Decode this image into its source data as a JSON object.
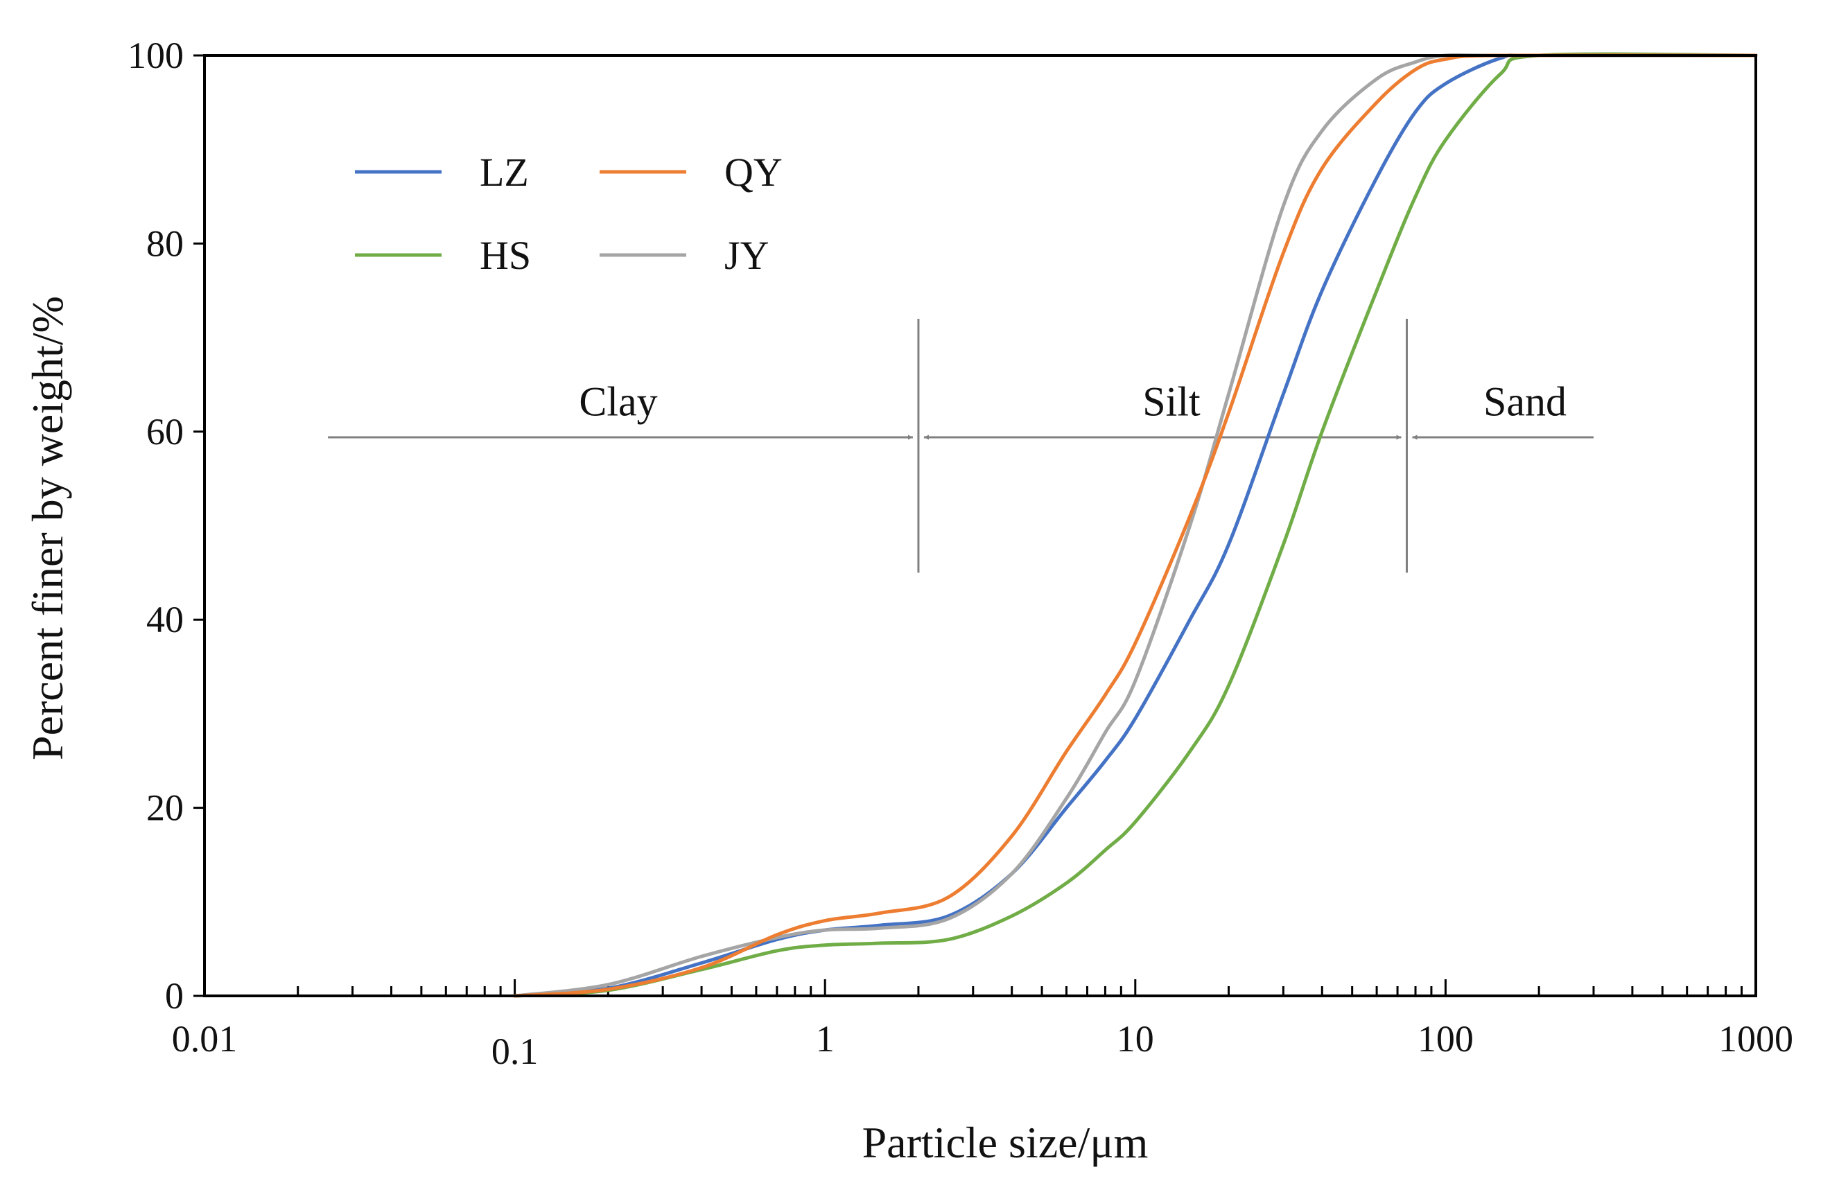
{
  "chart_data": {
    "type": "line",
    "title": "",
    "xlabel": "Particle size/μm",
    "ylabel": "Percent finer by weight/%",
    "xscale": "log",
    "xlim": [
      0.01,
      1000
    ],
    "ylim": [
      0,
      100
    ],
    "x_tick_labels": [
      "0.01",
      "0.1",
      "1",
      "10",
      "100",
      "1000"
    ],
    "y_tick_labels": [
      "0",
      "20",
      "40",
      "60",
      "80",
      "100"
    ],
    "x_ticks": [
      0.01,
      0.1,
      1,
      10,
      100,
      1000
    ],
    "y_ticks": [
      0,
      20,
      40,
      60,
      80,
      100
    ],
    "legend": [
      {
        "name": "LZ",
        "color": "#4472c4"
      },
      {
        "name": "QY",
        "color": "#ed7d31"
      },
      {
        "name": "HS",
        "color": "#70ad47"
      },
      {
        "name": "JY",
        "color": "#a5a5a5"
      }
    ],
    "legend_position": "top-left",
    "series": [
      {
        "name": "LZ",
        "color": "#4472c4",
        "x": [
          0.1,
          0.2,
          0.4,
          0.7,
          1,
          1.5,
          2.5,
          4,
          6,
          8,
          10,
          15,
          20,
          30,
          40,
          60,
          80,
          100,
          150,
          200
        ],
        "y": [
          0,
          0.8,
          3.5,
          6,
          7,
          7.5,
          8.5,
          13,
          20,
          25,
          29.5,
          40,
          48,
          64,
          75,
          87,
          94,
          97,
          99.7,
          100
        ]
      },
      {
        "name": "QY",
        "color": "#ed7d31",
        "x": [
          0.1,
          0.2,
          0.4,
          0.7,
          1,
          1.5,
          2.5,
          4,
          6,
          8,
          10,
          15,
          20,
          30,
          40,
          60,
          80,
          100,
          150
        ],
        "y": [
          0,
          0.7,
          3,
          6.5,
          8,
          8.8,
          10.5,
          17,
          26,
          32,
          37.5,
          51,
          62,
          79,
          88,
          95,
          98.5,
          99.6,
          100
        ]
      },
      {
        "name": "HS",
        "color": "#70ad47",
        "x": [
          0.1,
          0.2,
          0.4,
          0.7,
          1,
          1.5,
          2.5,
          4,
          6,
          8,
          10,
          15,
          20,
          30,
          40,
          60,
          80,
          100,
          150,
          200
        ],
        "y": [
          0,
          0.6,
          2.8,
          4.8,
          5.4,
          5.6,
          6,
          8.5,
          12,
          15.5,
          18.5,
          26,
          33,
          48,
          60,
          75,
          85,
          91,
          98,
          100
        ]
      },
      {
        "name": "JY",
        "color": "#a5a5a5",
        "x": [
          0.1,
          0.2,
          0.4,
          0.7,
          1,
          1.5,
          2.5,
          4,
          6,
          8,
          10,
          15,
          20,
          30,
          40,
          60,
          80,
          100,
          150
        ],
        "y": [
          0,
          1.2,
          4.2,
          6.2,
          7,
          7.2,
          8.2,
          13,
          21,
          28,
          33.5,
          50,
          64,
          84,
          92,
          97.5,
          99.3,
          100,
          100
        ]
      }
    ],
    "zones": [
      {
        "label": "Clay",
        "from": 0.025,
        "to": 2
      },
      {
        "label": "Silt",
        "from": 2,
        "to": 75
      },
      {
        "label": "Sand",
        "from": 75,
        "to": 300
      }
    ],
    "zone_arrow_y": 59.4,
    "zone_label_y": 63.2,
    "zone_boundaries": [
      2,
      75
    ],
    "zone_boundary_yrange": [
      45,
      72
    ]
  }
}
